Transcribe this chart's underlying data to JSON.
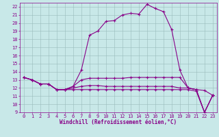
{
  "xlabel": "Windchill (Refroidissement éolien,°C)",
  "background_color": "#c8e8e8",
  "line_color": "#880088",
  "grid_color": "#99bbbb",
  "x_values": [
    0,
    1,
    2,
    3,
    4,
    5,
    6,
    7,
    8,
    9,
    10,
    11,
    12,
    13,
    14,
    15,
    16,
    17,
    18,
    19,
    20,
    21,
    22,
    23
  ],
  "line1": [
    13.3,
    13.0,
    12.5,
    12.5,
    11.8,
    11.8,
    12.2,
    14.2,
    18.5,
    19.0,
    20.2,
    20.3,
    21.0,
    21.2,
    21.1,
    22.3,
    21.8,
    21.4,
    19.2,
    14.2,
    12.0,
    11.8,
    11.7,
    11.1
  ],
  "line2": [
    13.3,
    13.0,
    12.5,
    12.5,
    11.8,
    11.8,
    12.2,
    13.0,
    13.2,
    13.2,
    13.2,
    13.2,
    13.2,
    13.3,
    13.3,
    13.3,
    13.3,
    13.3,
    13.3,
    13.3,
    12.0,
    11.8,
    9.0,
    11.1
  ],
  "line3": [
    13.3,
    13.0,
    12.5,
    12.5,
    11.8,
    11.8,
    12.0,
    12.2,
    12.3,
    12.3,
    12.2,
    12.2,
    12.2,
    12.2,
    12.2,
    12.2,
    12.2,
    12.2,
    12.2,
    12.0,
    12.0,
    11.8,
    9.0,
    11.1
  ],
  "line4": [
    13.3,
    13.0,
    12.5,
    12.5,
    11.8,
    11.8,
    11.8,
    11.8,
    11.8,
    11.8,
    11.8,
    11.8,
    11.8,
    11.8,
    11.8,
    11.8,
    11.8,
    11.8,
    11.8,
    11.8,
    11.8,
    11.6,
    9.0,
    11.1
  ],
  "ylim": [
    9,
    22.5
  ],
  "yticks": [
    9,
    10,
    11,
    12,
    13,
    14,
    15,
    16,
    17,
    18,
    19,
    20,
    21,
    22
  ],
  "xticks": [
    0,
    1,
    2,
    3,
    4,
    5,
    6,
    7,
    8,
    9,
    10,
    11,
    12,
    13,
    14,
    15,
    16,
    17,
    18,
    19,
    20,
    21,
    22,
    23
  ],
  "marker": "+",
  "markersize": 3,
  "linewidth": 0.8,
  "label_fontsize": 5.5,
  "tick_fontsize": 5.0
}
